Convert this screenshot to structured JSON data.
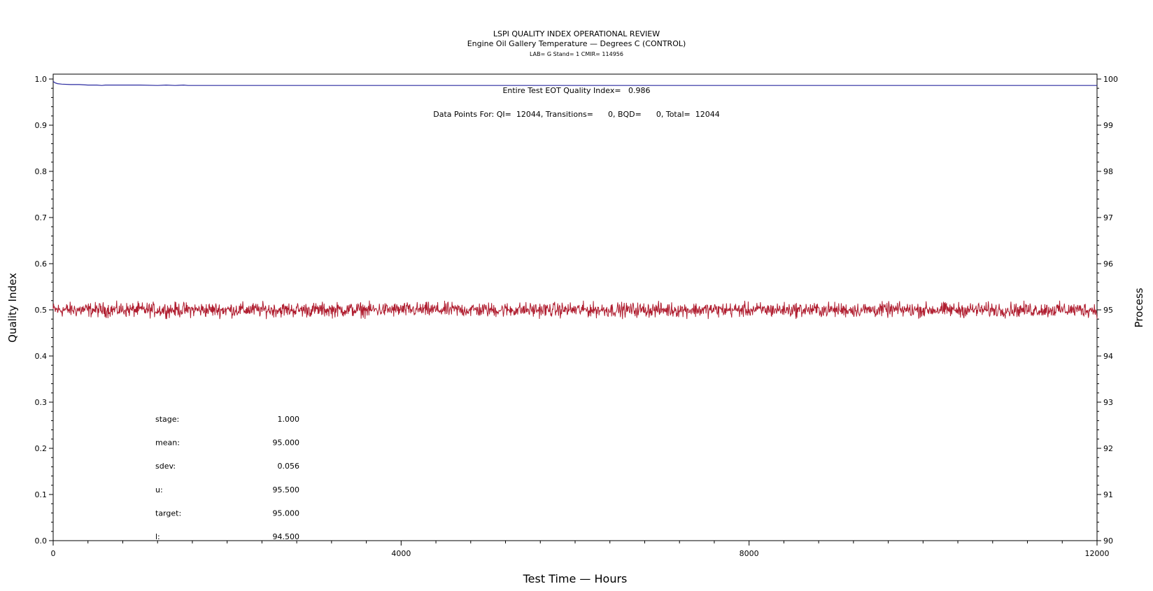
{
  "chart_data": {
    "type": "line",
    "title": "LSPI QUALITY INDEX OPERATIONAL REVIEW",
    "subtitle": "Engine Oil Gallery Temperature — Degrees C (CONTROL)",
    "subtitle2": "LAB= G Stand= 1 CMIR= 114956",
    "xlabel": "Test Time — Hours",
    "ylabel_left": "Quality Index",
    "ylabel_right": "Process",
    "xlim": [
      0,
      12000
    ],
    "ylim_left": [
      0,
      1
    ],
    "ylim_right": [
      90,
      100
    ],
    "x_ticks": [
      "0",
      "4000",
      "8000",
      "12000"
    ],
    "y_left_ticks": [
      "0.0",
      "0.1",
      "0.2",
      "0.3",
      "0.4",
      "0.5",
      "0.6",
      "0.7",
      "0.8",
      "0.9",
      "1.0"
    ],
    "y_right_ticks": [
      "90",
      "91",
      "92",
      "93",
      "94",
      "95",
      "96",
      "97",
      "98",
      "99",
      "100"
    ],
    "grid": false,
    "quality_index_annotation": "Entire Test EOT Quality Index=   0.986",
    "data_points_annotation": "Data Points For: QI=  12044, Transitions=      0, BQD=      0, Total=  12044",
    "series": [
      {
        "axis": "left",
        "color": "#2a2aa0",
        "x": [
          0,
          20,
          50,
          100,
          200,
          300,
          400,
          500,
          560,
          600,
          800,
          1000,
          1200,
          1300,
          1400,
          1500,
          1550,
          1600,
          2000,
          4000,
          6000,
          8000,
          10000,
          12000
        ],
        "values": [
          0.995,
          0.992,
          0.99,
          0.989,
          0.988,
          0.988,
          0.987,
          0.987,
          0.986,
          0.987,
          0.987,
          0.987,
          0.986,
          0.987,
          0.986,
          0.987,
          0.986,
          0.986,
          0.986,
          0.986,
          0.986,
          0.986,
          0.986,
          0.986
        ]
      },
      {
        "axis": "right",
        "color": "#b01e30",
        "mean": 95.0,
        "sdev": 0.056,
        "range": [
          94.8,
          95.2
        ],
        "x_range": [
          0,
          12000
        ]
      }
    ]
  },
  "stats": [
    {
      "label": "stage:",
      "value": "1.000"
    },
    {
      "label": "mean:",
      "value": "95.000"
    },
    {
      "label": "sdev:",
      "value": "0.056"
    },
    {
      "label": "u:",
      "value": "95.500"
    },
    {
      "label": "target:",
      "value": "95.000"
    },
    {
      "label": "l:",
      "value": "94.500"
    }
  ]
}
